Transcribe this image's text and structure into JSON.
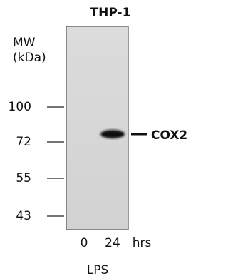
{
  "title": "THP-1",
  "axis_label": {
    "line1": "MW",
    "line2": "(kDa)"
  },
  "markers": [
    100,
    72,
    55,
    43
  ],
  "band_label": "COX2",
  "lanes": [
    "0",
    "24"
  ],
  "lane_unit": "hrs",
  "treatment": "LPS"
}
